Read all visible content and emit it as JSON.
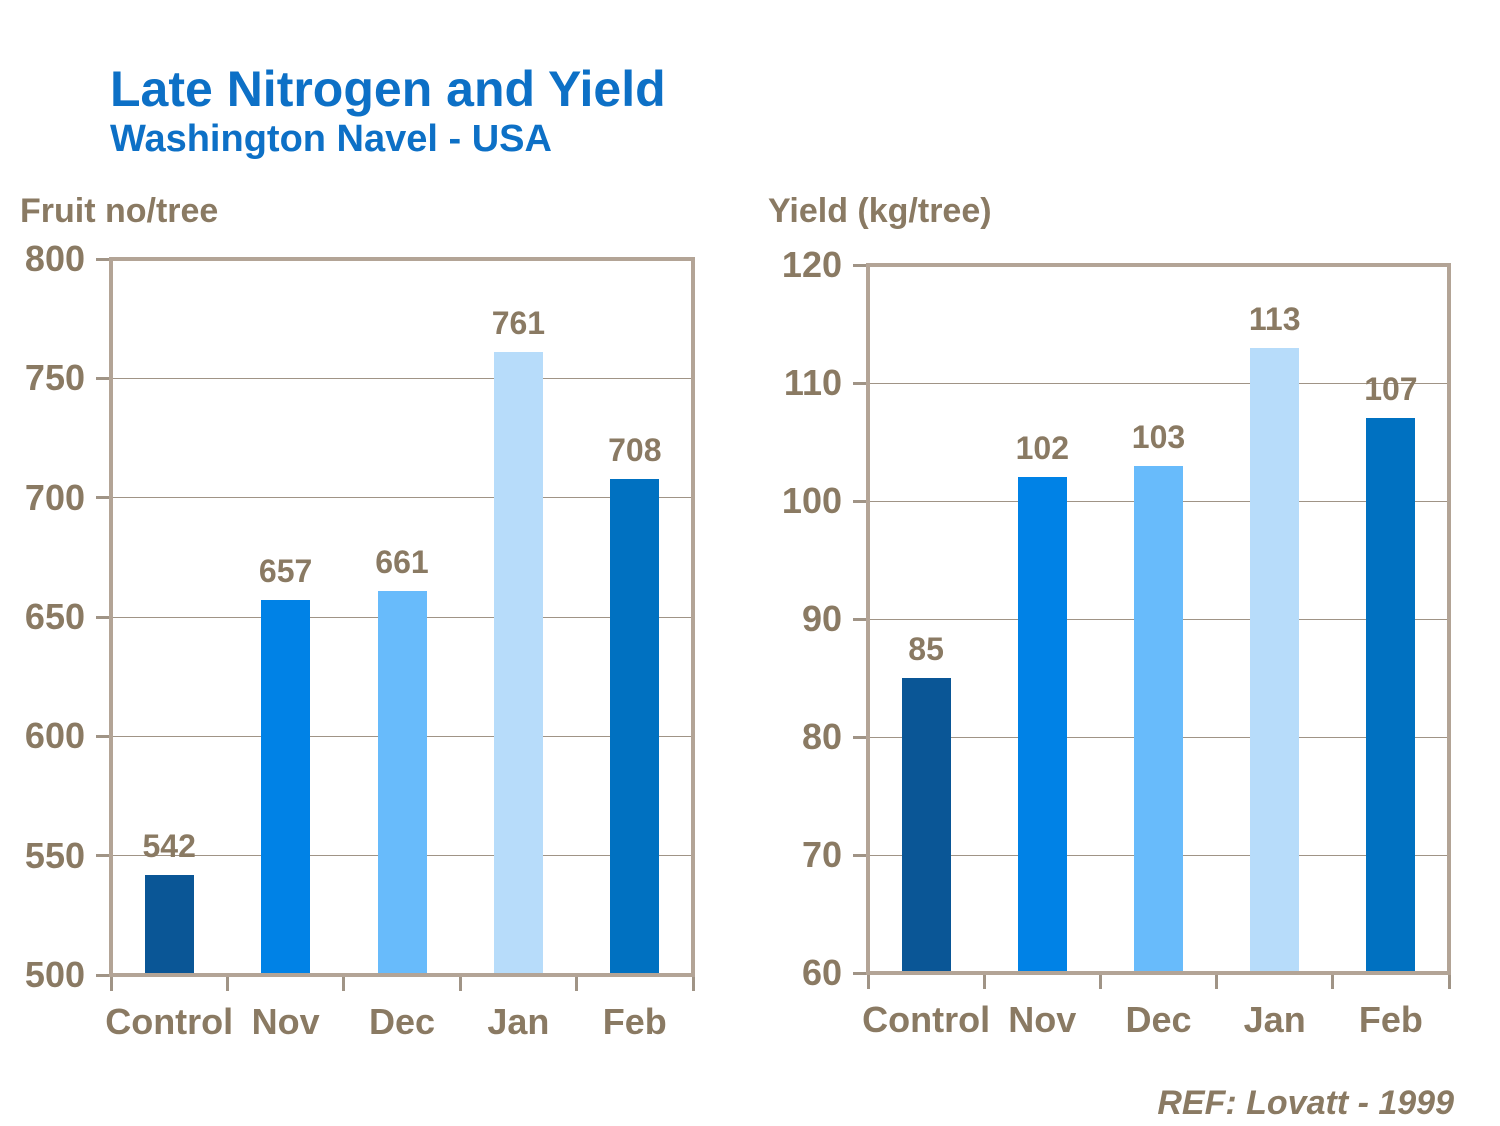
{
  "header": {
    "title": "Late Nitrogen and Yield",
    "subtitle": "Washington Navel - USA"
  },
  "footer": {
    "reference": "REF: Lovatt - 1999"
  },
  "colors": {
    "background": "#ffffff",
    "title_blue": "#0d70c6",
    "text_brown": "#8a7a63",
    "frame_tan": "#b3a496",
    "gridline": "#a09486",
    "bar_control": "#0a5696",
    "bar_nov": "#0082e6",
    "bar_dec": "#68bbfb",
    "bar_jan": "#b7dcfa",
    "bar_feb": "#0071c1"
  },
  "chart_data": [
    {
      "type": "bar",
      "ylabel": "Fruit no/tree",
      "xlabel": "",
      "categories": [
        "Control",
        "Nov",
        "Dec",
        "Jan",
        "Feb"
      ],
      "values": [
        542,
        657,
        661,
        761,
        708
      ],
      "bar_colors": [
        "#0a5696",
        "#0082e6",
        "#68bbfb",
        "#b7dcfa",
        "#0071c1"
      ],
      "ylim": [
        500,
        800
      ],
      "yticks": [
        800,
        750,
        700,
        650,
        600,
        550,
        500
      ],
      "grid": true,
      "legend": false
    },
    {
      "type": "bar",
      "ylabel": "Yield (kg/tree)",
      "xlabel": "",
      "categories": [
        "Control",
        "Nov",
        "Dec",
        "Jan",
        "Feb"
      ],
      "values": [
        85,
        102,
        103,
        113,
        107
      ],
      "bar_colors": [
        "#0a5696",
        "#0082e6",
        "#68bbfb",
        "#b7dcfa",
        "#0071c1"
      ],
      "ylim": [
        60,
        120
      ],
      "yticks": [
        120,
        110,
        100,
        90,
        80,
        70,
        60
      ],
      "grid": true,
      "legend": false
    }
  ]
}
